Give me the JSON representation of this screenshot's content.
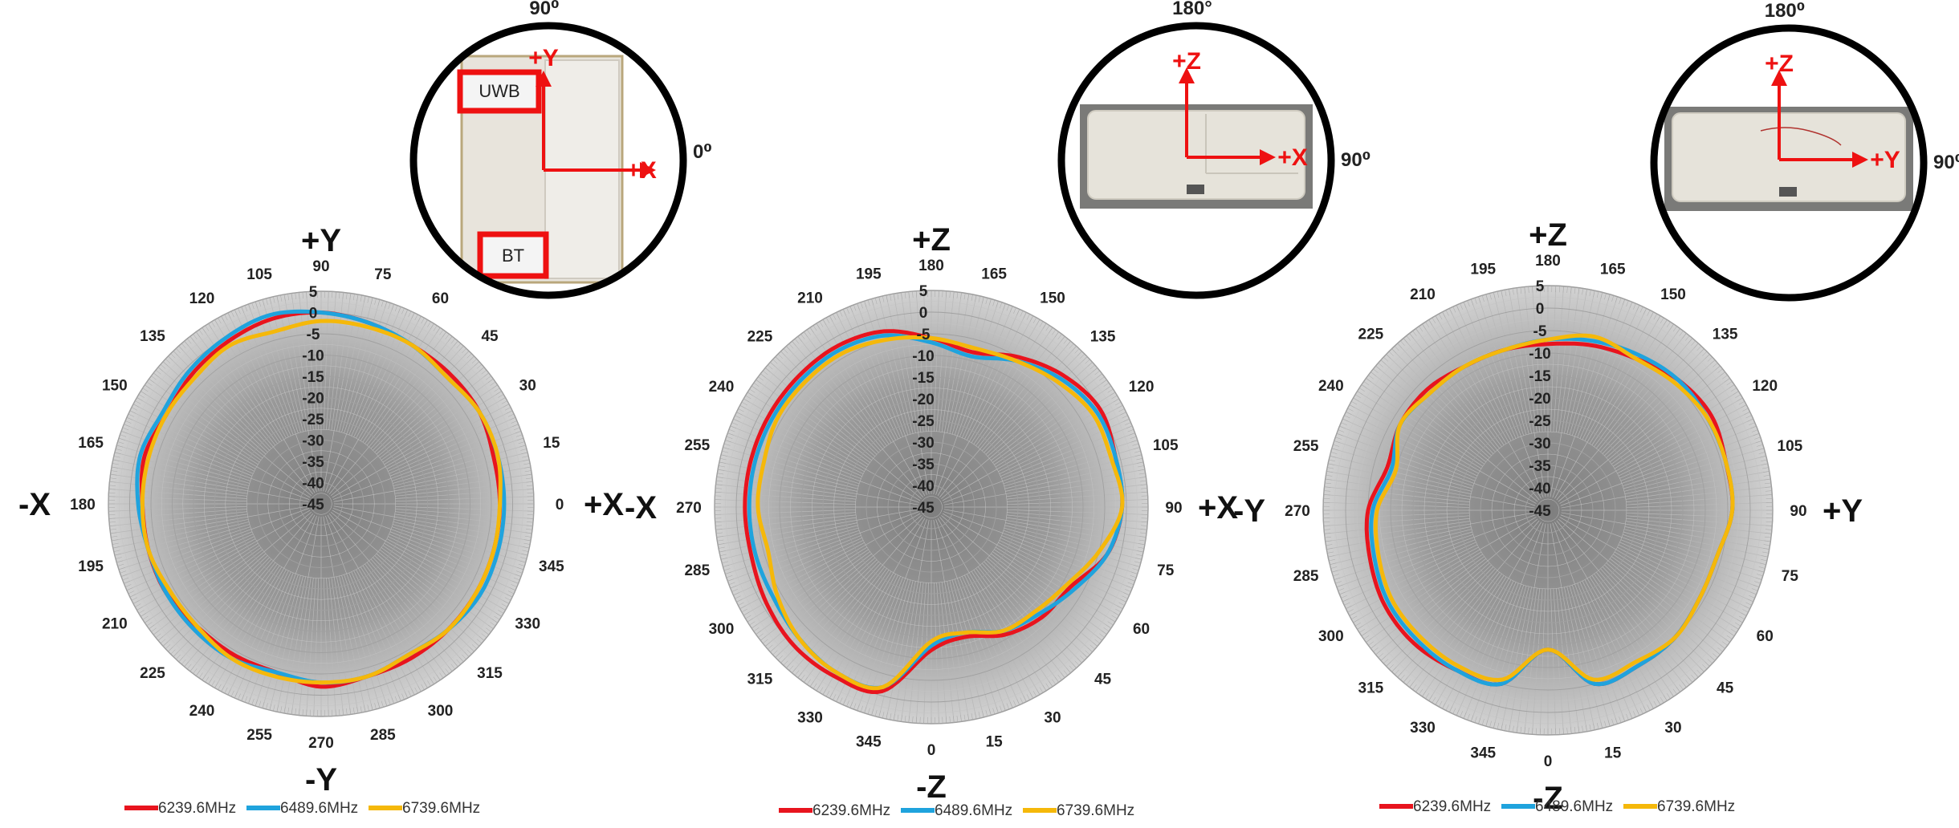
{
  "colors": {
    "s6239": "#e8141e",
    "s6489": "#1fa3dd",
    "s6739": "#f5b80a",
    "arrows": "#ee1111",
    "grid": "#b8b8b8",
    "center": "#8a8a8a"
  },
  "legend": [
    "6239.6MHz",
    "6489.6MHz",
    "6739.6MHz"
  ],
  "insets": [
    {
      "top_angle": "90⁰",
      "right_angle": "0⁰",
      "axis_up": "+Y",
      "axis_right": "+X",
      "box_labels": [
        "UWB",
        "BT"
      ]
    },
    {
      "top_angle": "180°",
      "right_angle": "90⁰",
      "axis_up": "+Z",
      "axis_right": "+X"
    },
    {
      "top_angle": "180⁰",
      "right_angle": "90⁰",
      "axis_up": "+Z",
      "axis_right": "+Y"
    }
  ],
  "chart_data": [
    {
      "type": "polar-line",
      "plane": "XY",
      "axis_top": "+Y",
      "axis_bottom": "-Y",
      "axis_left": "-X",
      "axis_right": "+X",
      "radial_ticks": [
        "5",
        "0",
        "-5",
        "-10",
        "-15",
        "-20",
        "-25",
        "-30",
        "-35",
        "-40",
        "-45"
      ],
      "rlim": [
        -45,
        5
      ],
      "angle_labels": [
        "0",
        "15",
        "30",
        "45",
        "60",
        "75",
        "90",
        "105",
        "120",
        "135",
        "150",
        "165",
        "180",
        "195",
        "210",
        "225",
        "240",
        "255",
        "270",
        "285",
        "300",
        "315",
        "330",
        "345"
      ],
      "angle_start": 0,
      "angles": [
        0,
        15,
        30,
        45,
        60,
        75,
        90,
        105,
        120,
        135,
        150,
        165,
        180,
        195,
        210,
        225,
        240,
        255,
        270,
        285,
        300,
        315,
        330,
        345
      ],
      "series": [
        {
          "name": "6239.6MHz",
          "values": [
            -3,
            -3,
            -2,
            -2,
            -2,
            -1,
            0,
            0,
            -1,
            -2,
            -3,
            -2,
            -3,
            -3,
            -3,
            -4,
            -4,
            -4,
            -2,
            -3,
            -3,
            -3,
            -3,
            -3
          ]
        },
        {
          "name": "6489.6MHz",
          "values": [
            -2,
            -2,
            -2,
            -3,
            -2,
            -1,
            0,
            1,
            0,
            -1,
            -2,
            -1,
            -2,
            -3,
            -3,
            -3,
            -3,
            -4,
            -3,
            -3,
            -4,
            -3,
            -2,
            -2
          ]
        },
        {
          "name": "6739.6MHz",
          "values": [
            -3,
            -2,
            -2,
            -3,
            -2,
            -2,
            -2,
            -3,
            -2,
            -3,
            -3,
            -3,
            -3,
            -3,
            -4,
            -4,
            -3,
            -3,
            -3,
            -3,
            -4,
            -3,
            -3,
            -3
          ]
        }
      ]
    },
    {
      "type": "polar-line",
      "plane": "XZ",
      "axis_top": "+Z",
      "axis_bottom": "-Z",
      "axis_left": "-X",
      "axis_right": "+X",
      "radial_ticks": [
        "5",
        "0",
        "-5",
        "-10",
        "-15",
        "-20",
        "-25",
        "-30",
        "-35",
        "-40",
        "-45"
      ],
      "rlim": [
        -45,
        5
      ],
      "angle_labels": [
        "90",
        "105",
        "120",
        "135",
        "150",
        "165",
        "180",
        "195",
        "210",
        "225",
        "240",
        "255",
        "270",
        "285",
        "300",
        "315",
        "330",
        "345",
        "0",
        "15",
        "30",
        "45",
        "60",
        "75"
      ],
      "angle_start": 90,
      "angles": [
        90,
        105,
        120,
        135,
        150,
        165,
        180,
        195,
        210,
        225,
        240,
        255,
        270,
        285,
        300,
        315,
        330,
        345,
        0,
        15,
        30,
        45,
        60,
        75
      ],
      "series": [
        {
          "name": "6239.6MHz",
          "values": [
            -1,
            -1,
            0,
            -2,
            -5,
            -8,
            -6,
            -3,
            -2,
            -2,
            -2,
            -2,
            -2,
            -2,
            -1,
            0,
            0,
            -1,
            -12,
            -14,
            -11,
            -9,
            -8,
            -3
          ]
        },
        {
          "name": "6489.6MHz",
          "values": [
            -1,
            -1,
            -1,
            -3,
            -6,
            -9,
            -7,
            -4,
            -3,
            -3,
            -3,
            -3,
            -3,
            -3,
            -3,
            -2,
            -1,
            -2,
            -13,
            -15,
            -12,
            -10,
            -7,
            -3
          ]
        },
        {
          "name": "6739.6MHz",
          "values": [
            -1,
            -2,
            -2,
            -4,
            -6,
            -7,
            -6,
            -5,
            -4,
            -4,
            -4,
            -5,
            -5,
            -6,
            -4,
            -2,
            -1,
            -2,
            -14,
            -15,
            -12,
            -11,
            -9,
            -5
          ]
        }
      ]
    },
    {
      "type": "polar-line",
      "plane": "YZ",
      "axis_top": "+Z",
      "axis_bottom": "-Z",
      "axis_left": "-Y",
      "axis_right": "+Y",
      "radial_ticks": [
        "5",
        "0",
        "-5",
        "-10",
        "-15",
        "-20",
        "-25",
        "-30",
        "-35",
        "-40",
        "-45"
      ],
      "rlim": [
        -45,
        5
      ],
      "angle_labels": [
        "90",
        "105",
        "120",
        "135",
        "150",
        "165",
        "180",
        "195",
        "210",
        "225",
        "240",
        "255",
        "270",
        "285",
        "300",
        "315",
        "330",
        "345",
        "0",
        "15",
        "30",
        "45",
        "60",
        "75"
      ],
      "angle_start": 90,
      "angles": [
        90,
        105,
        120,
        135,
        150,
        165,
        180,
        195,
        210,
        225,
        240,
        255,
        270,
        285,
        300,
        315,
        330,
        345,
        0,
        15,
        30,
        45,
        60,
        75
      ],
      "series": [
        {
          "name": "6239.6MHz",
          "values": [
            -4,
            -4,
            -3,
            -4,
            -6,
            -7,
            -8,
            -8,
            -8,
            -7,
            -7,
            -8,
            -5,
            -4,
            -3,
            -3,
            -4,
            -5,
            -14,
            -5,
            -5,
            -5,
            -6,
            -6
          ]
        },
        {
          "name": "6489.6MHz",
          "values": [
            -4,
            -4,
            -4,
            -4,
            -5,
            -6,
            -7,
            -8,
            -8,
            -8,
            -7,
            -9,
            -6,
            -5,
            -4,
            -4,
            -4,
            -5,
            -14,
            -5,
            -5,
            -5,
            -6,
            -6
          ]
        },
        {
          "name": "6739.6MHz",
          "values": [
            -4,
            -4,
            -4,
            -5,
            -6,
            -5,
            -7,
            -8,
            -8,
            -8,
            -7,
            -10,
            -7,
            -6,
            -5,
            -5,
            -5,
            -6,
            -14,
            -6,
            -6,
            -5,
            -6,
            -6
          ]
        }
      ]
    }
  ]
}
